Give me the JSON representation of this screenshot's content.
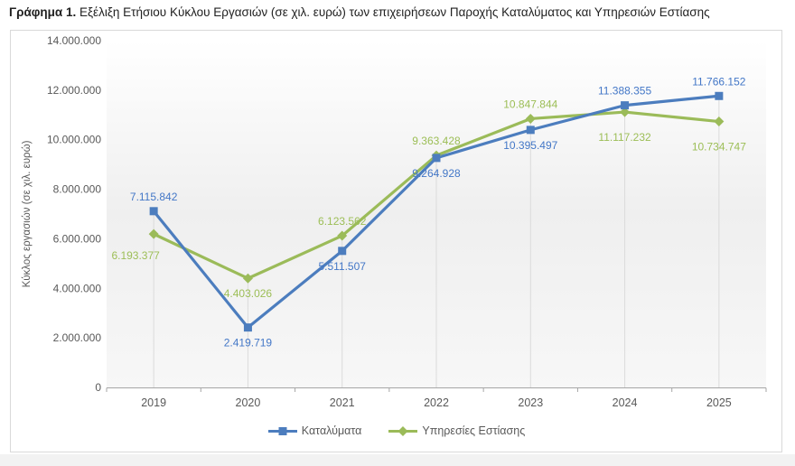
{
  "title": {
    "prefix": "Γράφημα 1.",
    "text": " Εξέλιξη Ετήσιου Κύκλου Εργασιών (σε χιλ. ευρώ) των επιχειρήσεων Παροχής Καταλύματος και Υπηρεσιών Εστίασης"
  },
  "chart_data": {
    "type": "line",
    "categories": [
      "2019",
      "2020",
      "2021",
      "2022",
      "2023",
      "2024",
      "2025"
    ],
    "series": [
      {
        "name": "Καταλύματα",
        "marker": "square",
        "color": "#4C7DBE",
        "label_color": "#4377C7",
        "values": [
          7115842,
          2419719,
          5511507,
          9264928,
          10395497,
          11388355,
          11766152
        ],
        "labels": [
          "7.115.842",
          "2.419.719",
          "5.511.507",
          "9.264.928",
          "10.395.497",
          "11.388.355",
          "11.766.152"
        ],
        "label_positions": [
          "above",
          "below",
          "below",
          "below",
          "below",
          "above",
          "above"
        ]
      },
      {
        "name": "Υπηρεσίες Εστίασης",
        "marker": "diamond",
        "color": "#9BBB59",
        "label_color": "#9CBE56",
        "values": [
          6193377,
          4403026,
          6123562,
          9363428,
          10847844,
          11117232,
          10734747
        ],
        "labels": [
          "6.193.377",
          "4.403.026",
          "6.123.562",
          "9.363.428",
          "10.847.844",
          "11.117.232",
          "10.734.747"
        ],
        "label_positions": [
          "below-left",
          "below",
          "above",
          "above",
          "above",
          "below-far",
          "below-far"
        ]
      }
    ],
    "ylabel": "Κύκλος εργασιών (σε χιλ. ευρώ)",
    "xlabel": "",
    "ylim": [
      0,
      14000000
    ],
    "y_tick_step": 2000000,
    "y_ticks": [
      "0",
      "2.000.000",
      "4.000.000",
      "6.000.000",
      "8.000.000",
      "10.000.000",
      "12.000.000",
      "14.000.000"
    ],
    "grid": "vertical-drop-lines",
    "legend_position": "bottom",
    "axis_color": "#A6A6A6",
    "drop_line_color": "#DBDBDB",
    "text_color": "#595959"
  }
}
